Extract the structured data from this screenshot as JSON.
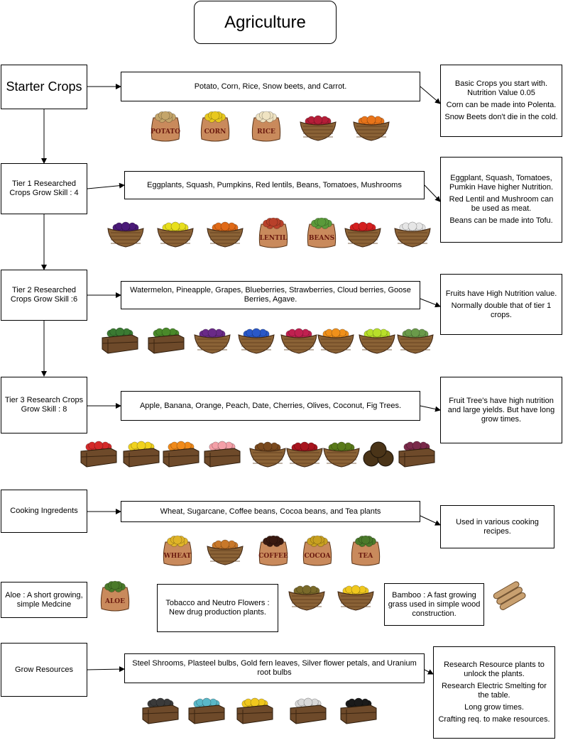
{
  "title": "Agriculture",
  "colors": {
    "sack": "#c98a5c",
    "basket": "#8a6236",
    "crate": "#6e4a2a",
    "label": "#6b1a0f"
  },
  "sections": [
    {
      "id": "starter",
      "label": "Starter Crops",
      "crops": "Potato, Corn, Rice, Snow beets, and Carrot.",
      "notes": [
        "Basic Crops you start with. Nutrition Value 0.05",
        "Corn can be made into Polenta.",
        "Snow Beets don't die in the cold."
      ],
      "items": [
        {
          "kind": "sack",
          "label": "POTATO",
          "fill": "#c4a56a"
        },
        {
          "kind": "sack",
          "label": "CORN",
          "fill": "#e8c81e"
        },
        {
          "kind": "sack",
          "label": "RICE",
          "fill": "#efe3c2"
        },
        {
          "kind": "basket",
          "fill": "#b51e38"
        },
        {
          "kind": "basket",
          "fill": "#e8741a"
        }
      ]
    },
    {
      "id": "tier1",
      "label": "Tier 1 Researched Crops Grow Skill : 4",
      "crops": "Eggplants, Squash, Pumpkins, Red lentils, Beans, Tomatoes, Mushrooms",
      "notes": [
        "Eggplant, Squash, Tomatoes, Pumkin Have higher Nutrition.",
        "Red Lentil and Mushroom can be used as meat.",
        "Beans can be made into Tofu."
      ],
      "items": [
        {
          "kind": "basket",
          "fill": "#4a1a78"
        },
        {
          "kind": "basket",
          "fill": "#e8df1e"
        },
        {
          "kind": "basket",
          "fill": "#e06a18"
        },
        {
          "kind": "sack",
          "label": "LENTIL",
          "fill": "#b8402a"
        },
        {
          "kind": "sack",
          "label": "BEANS",
          "fill": "#5a9a3a"
        },
        {
          "kind": "basket",
          "fill": "#d42020"
        },
        {
          "kind": "basket",
          "fill": "#e6e6e6"
        }
      ]
    },
    {
      "id": "tier2",
      "label": "Tier 2 Researched Crops Grow Skill :6",
      "crops": "Watermelon, Pineapple, Grapes, Blueberries, Strawberries, Cloud berries, Goose Berries,  Agave.",
      "notes": [
        "Fruits have High Nutrition value.",
        "Normally double that of tier 1 crops."
      ],
      "items": [
        {
          "kind": "crate",
          "fill": "#3a7a32"
        },
        {
          "kind": "crate",
          "fill": "#4a8a2a"
        },
        {
          "kind": "basket",
          "fill": "#6a2a88"
        },
        {
          "kind": "basket",
          "fill": "#2a58c8"
        },
        {
          "kind": "basket",
          "fill": "#c02050"
        },
        {
          "kind": "basket",
          "fill": "#f0901a"
        },
        {
          "kind": "basket",
          "fill": "#b8e02a"
        },
        {
          "kind": "basket",
          "fill": "#6a9a4a"
        }
      ]
    },
    {
      "id": "tier3",
      "label": "Tier 3 Research Crops Grow Skill : 8",
      "crops": "Apple, Banana, Orange, Peach, Date, Cherries, Olives, Coconut, Fig Trees.",
      "notes": [
        "Fruit Tree's have high nutrition and large yields. But have long grow times."
      ],
      "items": [
        {
          "kind": "crate",
          "fill": "#d42a2a"
        },
        {
          "kind": "crate",
          "fill": "#f0d21e"
        },
        {
          "kind": "crate",
          "fill": "#f08a1a"
        },
        {
          "kind": "crate",
          "fill": "#f4a0a8"
        },
        {
          "kind": "basket",
          "fill": "#7a4a1e"
        },
        {
          "kind": "basket",
          "fill": "#a8141e"
        },
        {
          "kind": "basket",
          "fill": "#5a7a1a"
        },
        {
          "kind": "coconut",
          "fill": "#4a3418"
        },
        {
          "kind": "crate",
          "fill": "#7a2a4a"
        }
      ]
    },
    {
      "id": "cooking",
      "label": "Cooking Ingredents",
      "crops": "Wheat, Sugarcane, Coffee beans, Cocoa beans, and Tea plants",
      "notes": [
        "Used in various cooking recipes."
      ],
      "items": [
        {
          "kind": "sack",
          "label": "WHEAT",
          "fill": "#e0b428"
        },
        {
          "kind": "basket",
          "fill": "#c8782a"
        },
        {
          "kind": "sack",
          "label": "COFFEE",
          "fill": "#3a1a10"
        },
        {
          "kind": "sack",
          "label": "COCOA",
          "fill": "#c8a020"
        },
        {
          "kind": "sack",
          "label": "TEA",
          "fill": "#4a7a2a"
        }
      ]
    },
    {
      "id": "misc",
      "aloe": "Aloe : A short growing, simple Medcine",
      "tobacco": "Tobacco and Neutro Flowers : New drug production plants.",
      "bamboo": "Bamboo : A fast growing grass used in simple wood construction.",
      "items": [
        {
          "kind": "sack",
          "label": "ALOE",
          "fill": "#4a7a2a"
        },
        {
          "kind": "basket",
          "fill": "#7a6a2a"
        },
        {
          "kind": "basket",
          "fill": "#f0c81e"
        },
        {
          "kind": "bamboo",
          "fill": "#c8a070"
        }
      ]
    },
    {
      "id": "grow",
      "label": "Grow Resources",
      "crops": "Steel Shrooms, Plasteel bulbs, Gold fern leaves, Silver flower petals, and Uranium root bulbs",
      "notes": [
        "Research Resource plants to unlock the plants.",
        "Research Electric Smelting for the table.",
        "Long grow times.",
        "Crafting req. to make resources."
      ],
      "items": [
        {
          "kind": "crate",
          "fill": "#3a3a3a"
        },
        {
          "kind": "crate",
          "fill": "#5ab8c8"
        },
        {
          "kind": "crate",
          "fill": "#f0c81e"
        },
        {
          "kind": "crate",
          "fill": "#d8d8d8"
        },
        {
          "kind": "crate",
          "fill": "#1a1a1a"
        }
      ]
    }
  ]
}
